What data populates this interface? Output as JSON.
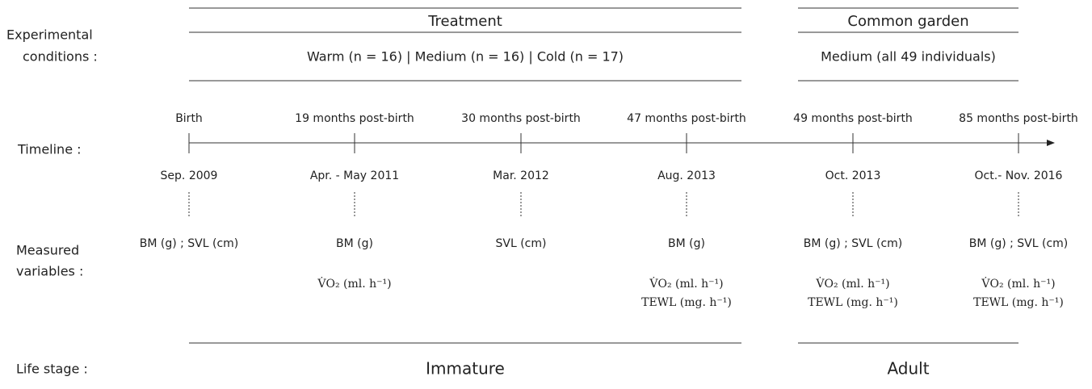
{
  "row_labels": {
    "conditions": [
      "Experimental",
      "conditions :"
    ],
    "timeline": "Timeline :",
    "measured": [
      "Measured",
      "variables :"
    ],
    "life_stage": "Life stage :"
  },
  "periods": [
    {
      "title": "Treatment",
      "conditions": "Warm (n = 16)  |  Medium (n = 16)  |  Cold (n = 17)",
      "life_stage": "Immature"
    },
    {
      "title": "Common garden",
      "conditions": "Medium (all 49 individuals)",
      "life_stage": "Adult"
    }
  ],
  "timeline": [
    {
      "label": "Birth",
      "date": "Sep. 2009",
      "variables": [
        "BM (g) ; SVL (cm)"
      ]
    },
    {
      "label": "19 months post-birth",
      "date": "Apr. - May 2011",
      "variables": [
        "BM (g)",
        "",
        "V̇O₂ (ml. h⁻¹)"
      ]
    },
    {
      "label": "30 months post-birth",
      "date": "Mar. 2012",
      "variables": [
        "SVL (cm)"
      ]
    },
    {
      "label": "47 months post-birth",
      "date": "Aug. 2013",
      "variables": [
        "BM (g)",
        "V̇O₂ (ml. h⁻¹)",
        "TEWL (mg. h⁻¹)"
      ]
    },
    {
      "label": "49 months post-birth",
      "date": "Oct. 2013",
      "variables": [
        "BM (g) ; SVL (cm)",
        "V̇O₂ (ml. h⁻¹)",
        "TEWL (mg. h⁻¹)"
      ]
    },
    {
      "label": "85 months post-birth",
      "date": "Oct.- Nov. 2016",
      "variables": [
        "BM (g) ; SVL (cm)",
        "V̇O₂ (ml. h⁻¹)",
        "TEWL (mg. h⁻¹)"
      ]
    }
  ]
}
